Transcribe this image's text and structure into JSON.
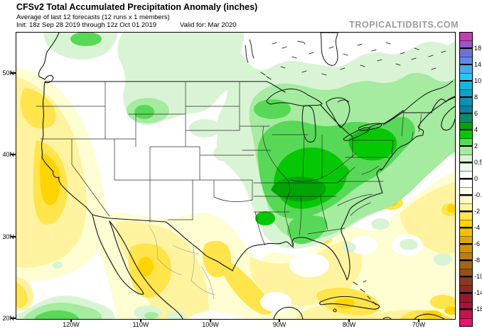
{
  "header": {
    "title": "CFSv2 Total Accumulated Precipitation Anomaly (inches)",
    "subtitle": "Average of last 12 forecasts (12 runs x 1 members)",
    "init_label": "Init: 18z Sep 28 2019 through 12z Oct 01 2019",
    "valid_label": "Valid for: Mar 2020",
    "watermark": "TROPICALTIDBITS.COM"
  },
  "axes": {
    "lat": [
      "50N",
      "40N",
      "30N",
      "20N"
    ],
    "lon": [
      "120W",
      "110W",
      "100W",
      "90W",
      "80W",
      "70W"
    ]
  },
  "colorbar": {
    "unit": "inches",
    "labels": [
      "18",
      "14",
      "10",
      "8",
      "6",
      "4",
      "2",
      "0.5",
      "0",
      "-0.5",
      "-2",
      "-4",
      "-6",
      "-8",
      "-10",
      "-14",
      "-18"
    ],
    "colors_top_to_bottom": [
      "#C33CB4",
      "#9655C8",
      "#7070DC",
      "#5A8CE6",
      "#46AAF0",
      "#28C8F5",
      "#14B4DC",
      "#0FA0C8",
      "#0C90B4",
      "#0A82A0",
      "#0C8C69",
      "#00A505",
      "#05C805",
      "#57D957",
      "#A5EBA0",
      "#D9F4D4",
      "#EBFAE6",
      "#FFFFFF",
      "#FFFFFF",
      "#FFFEE6",
      "#FFFAC8",
      "#FFF3A0",
      "#FFE44B",
      "#FFD400",
      "#F5BE0A",
      "#E1A50F",
      "#D2910F",
      "#BE7D14",
      "#A56414",
      "#965014",
      "#873C1E",
      "#8C2823",
      "#96192D",
      "#AA0F3C",
      "#C31450",
      "#E61473"
    ]
  },
  "map_palette": {
    "gp": "#D9F4D4",
    "gl": "#A5EBA0",
    "gm": "#57D957",
    "gb": "#05C805",
    "gd": "#00A405",
    "yp": "#FFFDD2",
    "yl": "#FFF3A0",
    "ym": "#FFE44B",
    "yg": "#FFD400"
  },
  "map_regions": [
    {
      "area": "Midwest / Ohio Valley / Tennessee Valley / Northeast",
      "anomaly": "positive, +0.5 to +5 in (wet, green)"
    },
    {
      "area": "West Coast (WA-OR-CA) and Northern California core",
      "anomaly": "negative, -1 to -4 in (dry, yellow/gold)"
    },
    {
      "area": "Southwest US / Northwest Mexico",
      "anomaly": "negative, -1 to -3 in"
    },
    {
      "area": "Gulf of Mexico, Florida, Caribbean, western Atlantic",
      "anomaly": "negative, -1 to -4 in"
    },
    {
      "area": "Southeast Pacific corner and southern Canada prairies",
      "anomaly": "slightly positive, +0.5 to +3 in"
    }
  ]
}
